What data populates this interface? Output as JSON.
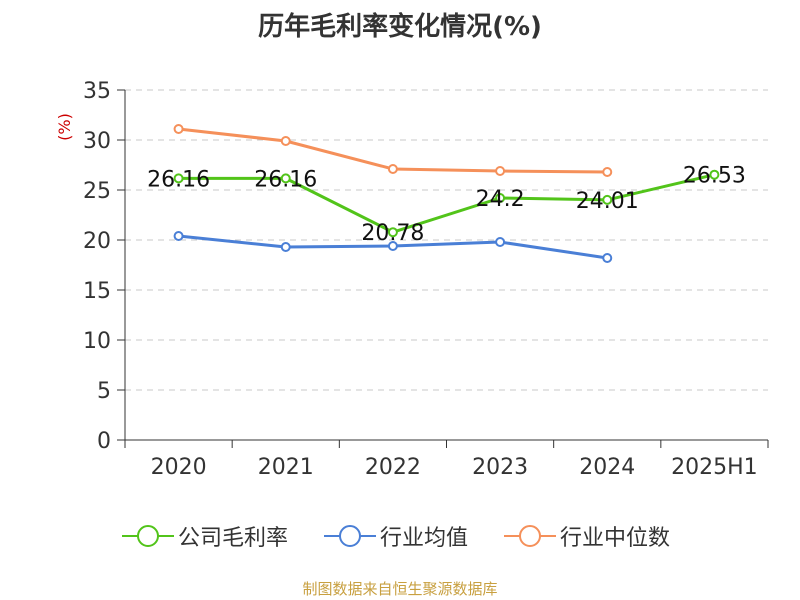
{
  "title": "历年毛利率变化情况(%)",
  "source": "制图数据来自恒生聚源数据库",
  "chart_data": {
    "type": "line",
    "title": "历年毛利率变化情况(%)",
    "ylabel": "(%)",
    "ylim": [
      0,
      35
    ],
    "yticks": [
      0,
      5,
      10,
      15,
      20,
      25,
      30,
      35
    ],
    "categories": [
      "2020",
      "2021",
      "2022",
      "2023",
      "2024",
      "2025H1"
    ],
    "grid": true,
    "legend_position": "bottom",
    "series": [
      {
        "name": "公司毛利率",
        "color": "#52c41a",
        "values": [
          26.16,
          26.16,
          20.78,
          24.2,
          24.01,
          26.53
        ],
        "labels": [
          "26.16",
          "26.16",
          "20.78",
          "24.2",
          "24.01",
          "26.53"
        ]
      },
      {
        "name": "行业均值",
        "color": "#4a7fd6",
        "values": [
          20.4,
          19.3,
          19.4,
          19.8,
          18.2,
          null
        ]
      },
      {
        "name": "行业中位数",
        "color": "#f5905a",
        "values": [
          31.1,
          29.9,
          27.1,
          26.9,
          26.8,
          null
        ]
      }
    ]
  }
}
